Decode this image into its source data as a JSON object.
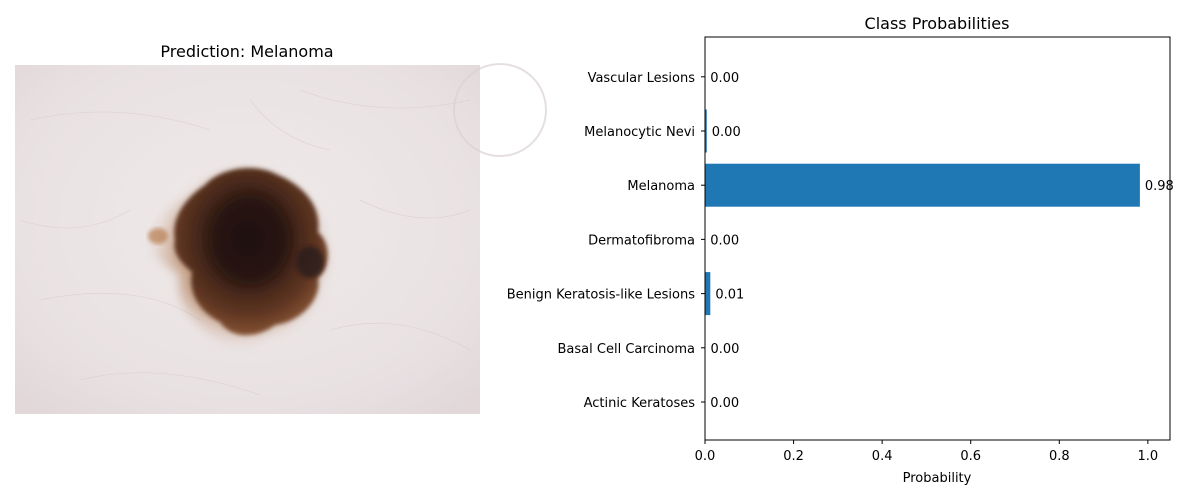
{
  "left_panel": {
    "title": "Prediction: Melanoma"
  },
  "colors": {
    "bar": "#1f77b4",
    "axis": "#000000",
    "skin_light": "#ece6e6",
    "skin_mid": "#e6dcdd",
    "lesion_dark": "#2f1a14",
    "lesion_mid": "#5a3220",
    "lesion_edge": "#9a6440"
  },
  "chart_data": {
    "type": "bar",
    "orientation": "horizontal",
    "title": "Class Probabilities",
    "xlabel": "Probability",
    "ylabel": "",
    "xlim": [
      0,
      1.05
    ],
    "xticks": [
      0.0,
      0.2,
      0.4,
      0.6,
      0.8,
      1.0
    ],
    "xtick_labels": [
      "0.0",
      "0.2",
      "0.4",
      "0.6",
      "0.8",
      "1.0"
    ],
    "grid": false,
    "categories": [
      "Actinic Keratoses",
      "Basal Cell Carcinoma",
      "Benign Keratosis-like Lesions",
      "Dermatofibroma",
      "Melanoma",
      "Melanocytic Nevi",
      "Vascular Lesions"
    ],
    "values": [
      0.0005,
      0.001,
      0.012,
      0.0005,
      0.982,
      0.004,
      0.0005
    ],
    "data_labels": [
      "0.00",
      "0.00",
      "0.01",
      "0.00",
      "0.98",
      "0.00",
      "0.00"
    ]
  }
}
